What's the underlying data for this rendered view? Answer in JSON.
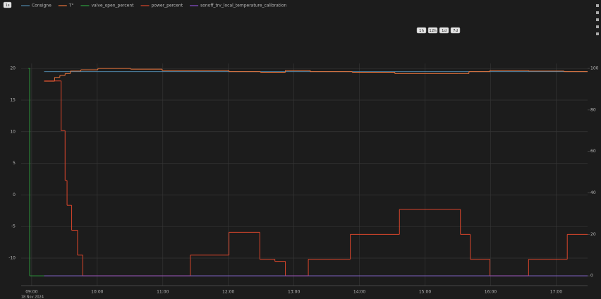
{
  "chart_data": {
    "type": "line",
    "step": true,
    "top_left_button": "1s",
    "range_buttons": [
      "1h",
      "12h",
      "1d",
      "7d"
    ],
    "x_date_label": "18 Nov 2024",
    "xlim": [
      8.84,
      17.48
    ],
    "xticks": [
      {
        "value": 9,
        "label": "09:00"
      },
      {
        "value": 10,
        "label": "10:00"
      },
      {
        "value": 11,
        "label": "11:00"
      },
      {
        "value": 12,
        "label": "12:00"
      },
      {
        "value": 13,
        "label": "13:00"
      },
      {
        "value": 14,
        "label": "14:00"
      },
      {
        "value": 15,
        "label": "15:00"
      },
      {
        "value": 16,
        "label": "16:00"
      },
      {
        "value": 17,
        "label": "17:00"
      }
    ],
    "ylim": [
      -14.35,
      20.8
    ],
    "yticks": [
      -10,
      -5,
      0,
      5,
      10,
      15,
      20
    ],
    "y2lim": [
      -4.7,
      102.4
    ],
    "y2ticks": [
      0,
      20,
      40,
      60,
      80,
      100
    ],
    "grid": true,
    "series": [
      {
        "name": "Consigne",
        "color": "#4f86a8",
        "x": [
          9.19
        ],
        "values": [
          19.5
        ]
      },
      {
        "name": "T°",
        "color": "#e8743b",
        "x": [
          9.19,
          9.35,
          9.43,
          9.51,
          9.59,
          9.75,
          10.01,
          10.51,
          10.99,
          12.01,
          12.49,
          12.87,
          13.25,
          13.89,
          14.54,
          15.51,
          15.67,
          15.99,
          16.58,
          17.12
        ],
        "values": [
          18.0,
          18.6,
          18.9,
          19.2,
          19.6,
          19.8,
          20.0,
          19.9,
          19.7,
          19.5,
          19.4,
          19.7,
          19.5,
          19.4,
          19.2,
          19.2,
          19.5,
          19.7,
          19.6,
          19.5
        ]
      },
      {
        "name": "valve_open_percent",
        "color": "#2e9e3e",
        "axis": "y2",
        "x": [
          8.95,
          8.97
        ],
        "values": [
          100,
          0
        ]
      },
      {
        "name": "power_percent",
        "color": "#d9452b",
        "axis": "y2",
        "x": [
          9.19,
          9.45,
          9.51,
          9.54,
          9.61,
          9.7,
          9.78,
          11.42,
          12.01,
          12.48,
          12.71,
          12.87,
          13.22,
          13.86,
          14.61,
          15.54,
          15.69,
          15.99,
          16.58,
          17.17
        ],
        "values": [
          94,
          70,
          46,
          34,
          22,
          10,
          0,
          10,
          21,
          8,
          7,
          0,
          8,
          20,
          32,
          20,
          8,
          0,
          8,
          20
        ]
      },
      {
        "name": "sonoff_trv_local_temperature_calibration",
        "color": "#8a4fd0",
        "axis": "y2",
        "x": [
          9.19
        ],
        "values": [
          0
        ]
      }
    ]
  }
}
